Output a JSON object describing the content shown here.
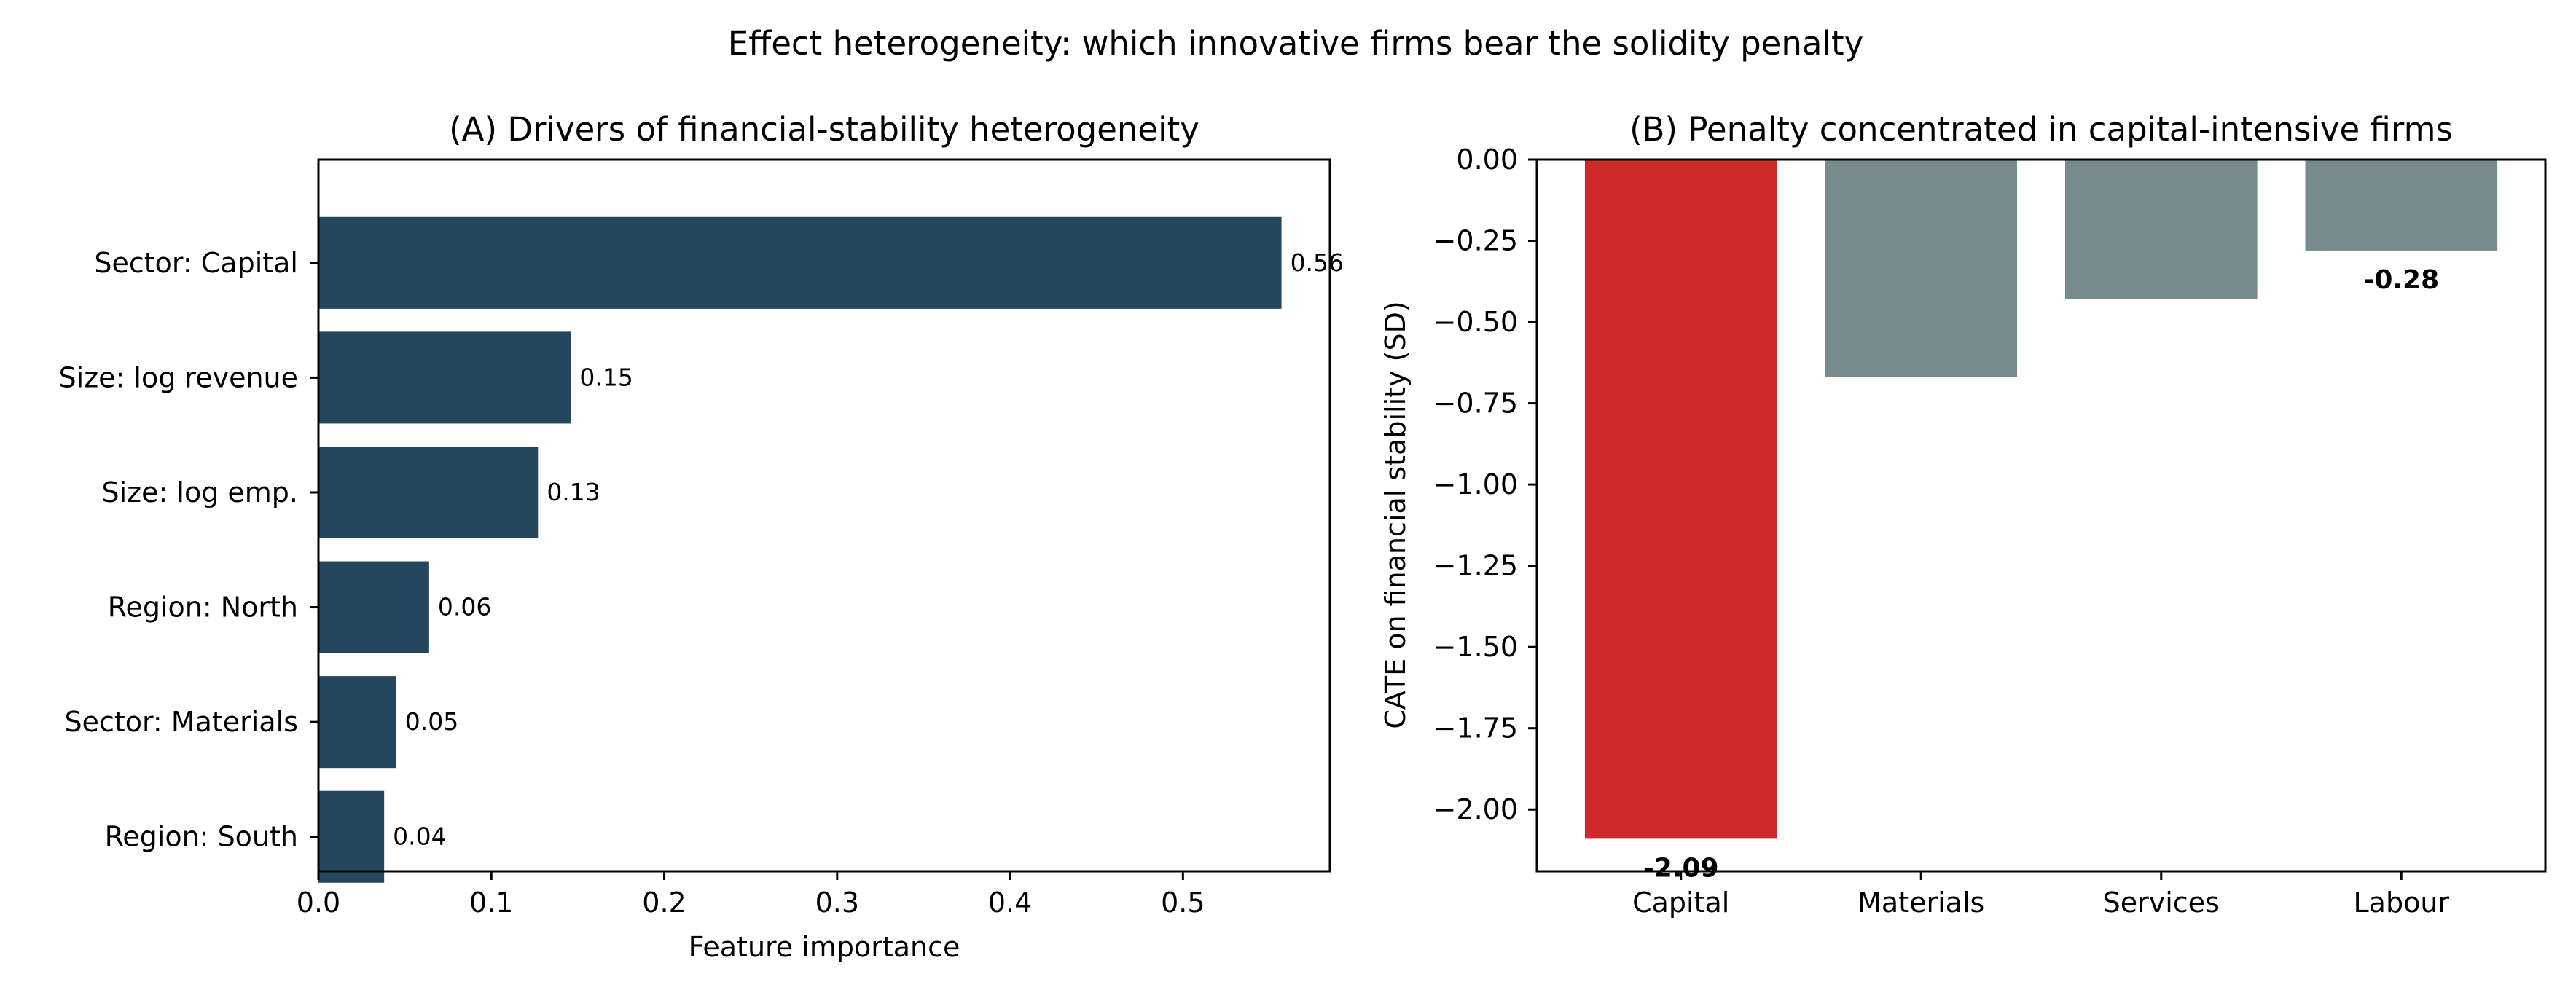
{
  "figure": {
    "suptitle": "Effect heterogeneity: which innovative firms bear the solidity penalty"
  },
  "chart_data": [
    {
      "type": "bar",
      "orientation": "horizontal",
      "title": "(A) Drivers of financial-stability heterogeneity",
      "xlabel": "Feature importance",
      "ylabel": "",
      "categories": [
        "Sector: Capital",
        "Size: log revenue",
        "Size: log emp.",
        "Region: North",
        "Sector: Materials",
        "Region: South"
      ],
      "values": [
        0.557,
        0.146,
        0.127,
        0.064,
        0.045,
        0.038
      ],
      "data_labels": [
        "0.56",
        "0.15",
        "0.13",
        "0.06",
        "0.05",
        "0.04"
      ],
      "xlim": [
        0,
        0.585
      ],
      "xticks": [
        0.0,
        0.1,
        0.2,
        0.3,
        0.4,
        0.5
      ],
      "xtick_labels": [
        "0.0",
        "0.1",
        "0.2",
        "0.3",
        "0.4",
        "0.5"
      ],
      "bar_color": "#24475e",
      "grid": false
    },
    {
      "type": "bar",
      "orientation": "vertical",
      "title": "(B) Penalty concentrated in capital-intensive firms",
      "xlabel": "",
      "ylabel": "CATE on financial stability (SD)",
      "categories": [
        "Capital",
        "Materials",
        "Services",
        "Labour"
      ],
      "values": [
        -2.09,
        -0.67,
        -0.43,
        -0.28
      ],
      "data_labels": [
        "-2.09",
        "",
        "",
        "-0.28"
      ],
      "ylim": [
        -2.19,
        0.0
      ],
      "yticks": [
        0.0,
        -0.25,
        -0.5,
        -0.75,
        -1.0,
        -1.25,
        -1.5,
        -1.75,
        -2.0
      ],
      "ytick_labels": [
        "0.00",
        "−0.25",
        "−0.50",
        "−0.75",
        "−1.00",
        "−1.25",
        "−1.50",
        "−1.75",
        "−2.00"
      ],
      "bar_colors": [
        "#cf2a2a",
        "#788b8c",
        "#788b8c",
        "#788b8c"
      ],
      "grid": false
    }
  ]
}
